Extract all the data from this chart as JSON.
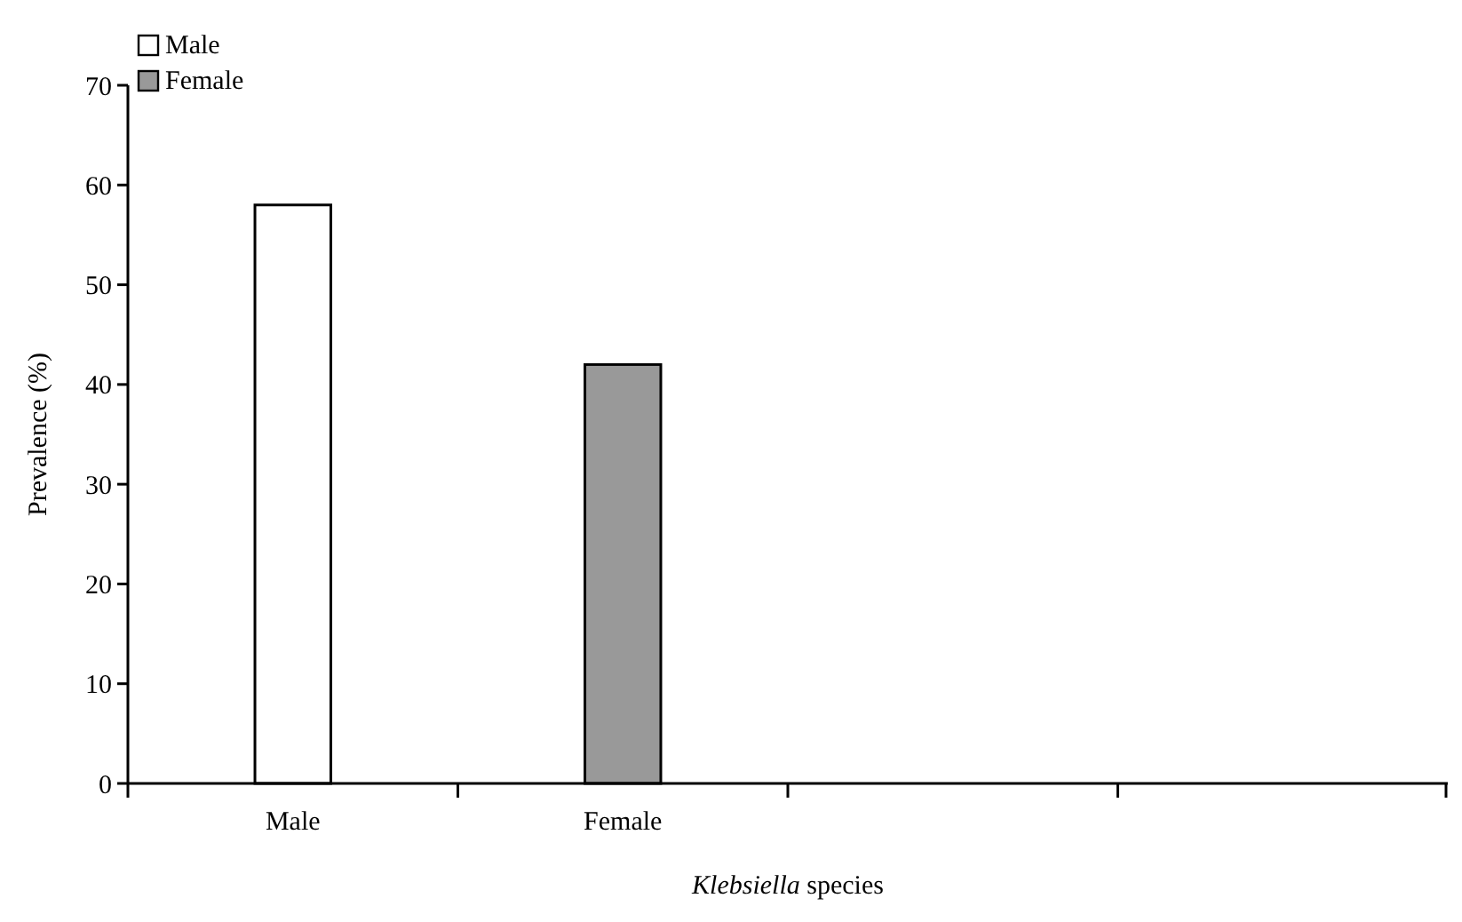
{
  "chart_data": {
    "type": "bar",
    "ylabel": "Prevalence (%)",
    "xlabel": "Klebsiella species",
    "categories": [
      "Male",
      "Female",
      null,
      null
    ],
    "series": [
      {
        "name": "Male",
        "color": "#ffffff",
        "values": [
          58,
          null,
          null,
          null
        ]
      },
      {
        "name": "Female",
        "color": "#999999",
        "values": [
          null,
          42,
          null,
          null
        ]
      }
    ],
    "ylim": [
      0,
      70
    ],
    "yticks": [
      0,
      10,
      20,
      30,
      40,
      50,
      60,
      70
    ],
    "legend": "top left",
    "grid": false
  }
}
